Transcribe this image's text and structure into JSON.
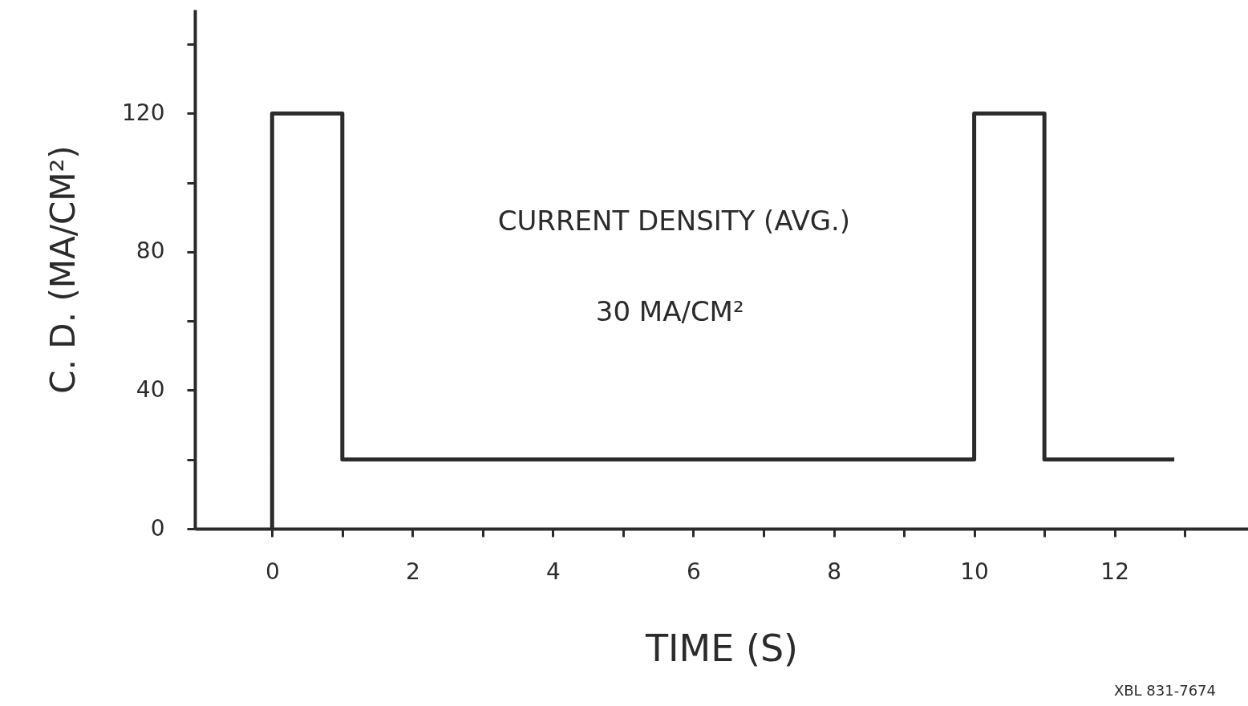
{
  "chart_data": {
    "type": "line",
    "xlabel": "TIME (S)",
    "ylabel": "C. D. (MA/CM²)",
    "x": [
      0,
      0,
      1,
      1,
      10,
      10,
      11,
      11,
      12.85
    ],
    "series": [
      {
        "color": "#2b2b2b",
        "values": [
          0,
          120,
          120,
          20,
          20,
          120,
          120,
          20,
          20
        ]
      }
    ],
    "xlim": [
      -1.1,
      13.9
    ],
    "ylim": [
      0,
      150
    ],
    "xticks": [
      0,
      {
        "value": 1,
        "label": null
      },
      2,
      {
        "value": 3,
        "label": null
      },
      4,
      {
        "value": 5,
        "label": null
      },
      6,
      {
        "value": 7,
        "label": null
      },
      8,
      {
        "value": 9,
        "label": null
      },
      10,
      {
        "value": 11,
        "label": null
      },
      12,
      {
        "value": 13,
        "label": null
      }
    ],
    "yticks": [
      0,
      {
        "value": 20,
        "label": null
      },
      40,
      {
        "value": 60,
        "label": null
      },
      80,
      {
        "value": 100,
        "label": null
      },
      120,
      {
        "value": 140,
        "label": null
      }
    ],
    "annotations": [
      "CURRENT DENSITY (AVG.)",
      "30 MA/CM²",
      "XBL 831-7674"
    ],
    "grid": false,
    "marker": "none",
    "line_style": "solid"
  }
}
